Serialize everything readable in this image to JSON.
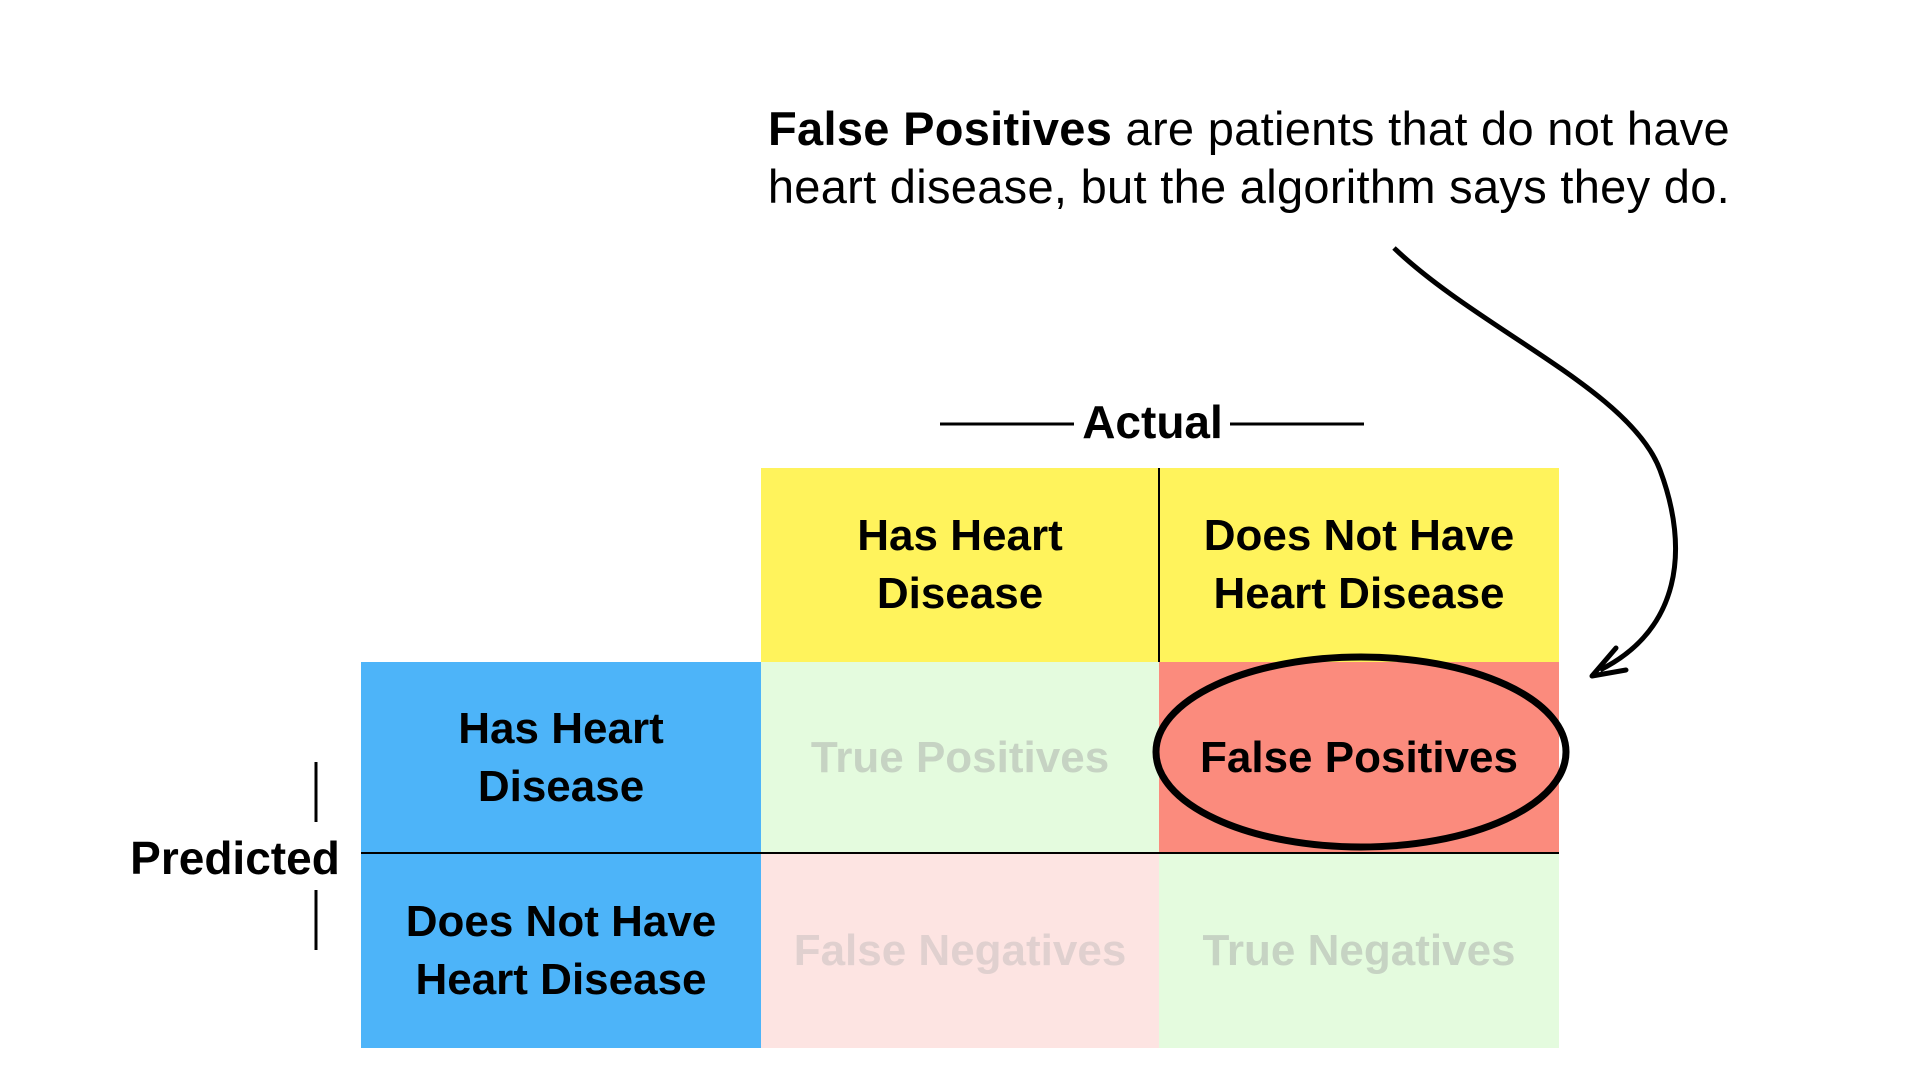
{
  "annotation": {
    "strong": "False Positives",
    "line1_rest": " are patients that do not have",
    "line2": "heart disease, but the algorithm says they do."
  },
  "matrix": {
    "actual_label": "Actual",
    "predicted_label": "Predicted",
    "actual_columns": [
      {
        "line1": "Has Heart",
        "line2": "Disease"
      },
      {
        "line1": "Does Not Have",
        "line2": "Heart Disease"
      }
    ],
    "predicted_rows": [
      {
        "line1": "Has Heart",
        "line2": "Disease"
      },
      {
        "line1": "Does Not Have",
        "line2": "Heart Disease"
      }
    ],
    "cells": {
      "true_positives": "True Positives",
      "false_positives": "False Positives",
      "false_negatives": "False Negatives",
      "true_negatives": "True Negatives"
    }
  },
  "colors": {
    "actual_header": "#fff35c",
    "predicted_header": "#4db4f9",
    "highlight": "#fb8b7d",
    "faded_green": "#e4fbde",
    "faded_red": "#fde4e2"
  }
}
